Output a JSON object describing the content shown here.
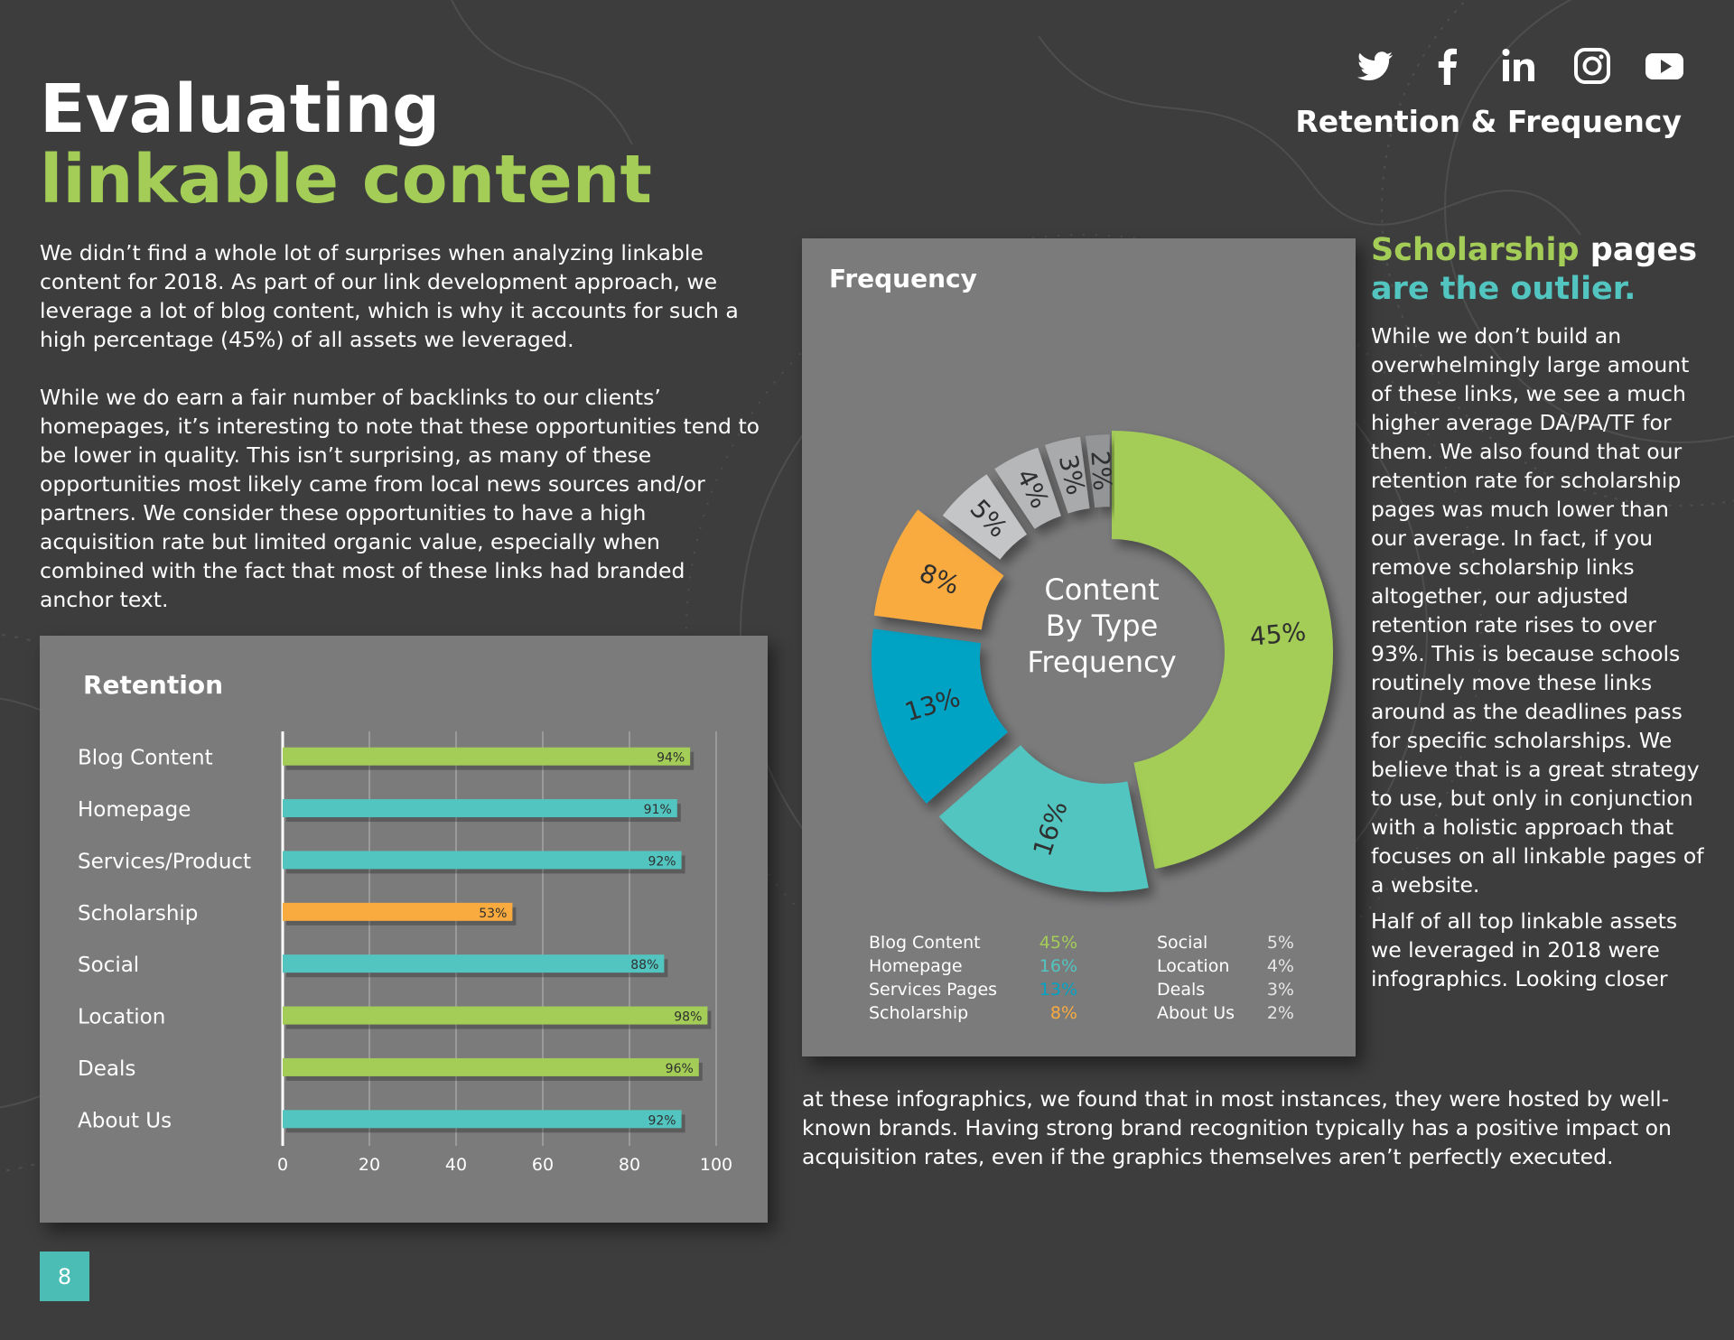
{
  "colors": {
    "background": "#3d3d3e",
    "green": "#a3cd57",
    "teal": "#52c5c0",
    "blue": "#00a3c4",
    "orange": "#f9ab3f",
    "gray_light": "#c4c5c7",
    "gray_mid": "#a9aaac",
    "gray_dark": "#949597",
    "panel": "#7b7b7c"
  },
  "page": {
    "title_line1": "Evaluating",
    "title_line2": "linkable content",
    "section_label": "Retention & Frequency",
    "page_number": "8",
    "social_icons": [
      "twitter-icon",
      "facebook-icon",
      "linkedin-icon",
      "instagram-icon",
      "youtube-icon"
    ]
  },
  "intro": {
    "p1": "We didn’t find a whole lot of surprises when analyzing linkable content for 2018. As part of our link development approach, we leverage a lot of blog content, which is why it accounts for such a high percentage (45%) of all assets we leveraged.",
    "p2": "While we do earn a fair number of backlinks to our clients’ homepages, it’s interesting to note that these opportunities tend to be lower in quality. This isn’t surprising, as many of these opportunities most likely came from local news sources and/or partners. We consider these opportunities to have a high acquisition rate but limited organic value, especially when combined with the fact that most of these links had branded anchor text."
  },
  "right_column": {
    "heading_word1": "Scholarship",
    "heading_word2": " pages",
    "heading_line2": "are the outlier.",
    "p1": "While we don’t build an overwhelmingly large amount of these links, we see a much higher average DA/PA/TF for them. We also found that our retention rate for scholarship pages was much lower than our average. In fact, if you remove scholarship links altogether, our adjusted retention rate rises to over 93%. This is because schools routinely move these links around as the deadlines pass for specific scholarships. We believe that is a great strategy to use, but only in conjunction with a holistic approach that focuses on all linkable pages of a website.",
    "p2": "Half of all top linkable assets we leveraged in 2018 were infographics. Looking closer"
  },
  "bottom_text": "at these infographics, we found that in most instances, they were hosted by well-known brands. Having strong brand recognition typically has a positive impact on acquisition rates, even if the graphics themselves aren’t perfectly executed.",
  "chart_data": [
    {
      "type": "bar",
      "orientation": "horizontal",
      "title": "Retention",
      "categories": [
        "Blog Content",
        "Homepage",
        "Services/Product",
        "Scholarship",
        "Social",
        "Location",
        "Deals",
        "About Us"
      ],
      "values": [
        94,
        91,
        92,
        53,
        88,
        98,
        96,
        92
      ],
      "value_labels": [
        "94%",
        "91%",
        "92%",
        "53%",
        "88%",
        "98%",
        "96%",
        "92%"
      ],
      "bar_colors": [
        "#a3cd57",
        "#52c5c0",
        "#52c5c0",
        "#f9ab3f",
        "#52c5c0",
        "#a3cd57",
        "#a3cd57",
        "#52c5c0"
      ],
      "xlim": [
        0,
        100
      ],
      "xticks": [
        0,
        20,
        40,
        60,
        80,
        100
      ],
      "xlabel": "",
      "ylabel": "",
      "grid": true
    },
    {
      "type": "pie",
      "variant": "exploded donut",
      "title": "Frequency",
      "center_label": [
        "Content",
        "By Type",
        "Frequency"
      ],
      "slices": [
        {
          "name": "Blog Content",
          "value": 45,
          "label": "45%",
          "color": "#a3cd57"
        },
        {
          "name": "Homepage",
          "value": 16,
          "label": "16%",
          "color": "#52c5c0"
        },
        {
          "name": "Services Pages",
          "value": 13,
          "label": "13%",
          "color": "#00a3c4"
        },
        {
          "name": "Scholarship",
          "value": 8,
          "label": "8%",
          "color": "#f9ab3f"
        },
        {
          "name": "Social",
          "value": 5,
          "label": "5%",
          "color": "#c4c5c7"
        },
        {
          "name": "Location",
          "value": 4,
          "label": "4%",
          "color": "#b6b7b9"
        },
        {
          "name": "Deals",
          "value": 3,
          "label": "3%",
          "color": "#a9aaac"
        },
        {
          "name": "About Us",
          "value": 2,
          "label": "2%",
          "color": "#949597"
        }
      ],
      "legend": {
        "placement": "bottom",
        "left": [
          {
            "name": "Blog Content",
            "label": "45%",
            "color": "#a3cd57"
          },
          {
            "name": "Homepage",
            "label": "16%",
            "color": "#52c5c0"
          },
          {
            "name": "Services Pages",
            "label": "13%",
            "color": "#00a3c4"
          },
          {
            "name": "Scholarship",
            "label": "8%",
            "color": "#f9ab3f"
          }
        ],
        "right": [
          {
            "name": "Social",
            "label": "5%",
            "color": "#e6e6e6"
          },
          {
            "name": "Location",
            "label": "4%",
            "color": "#e6e6e6"
          },
          {
            "name": "Deals",
            "label": "3%",
            "color": "#e6e6e6"
          },
          {
            "name": "About Us",
            "label": "2%",
            "color": "#e6e6e6"
          }
        ]
      }
    }
  ]
}
